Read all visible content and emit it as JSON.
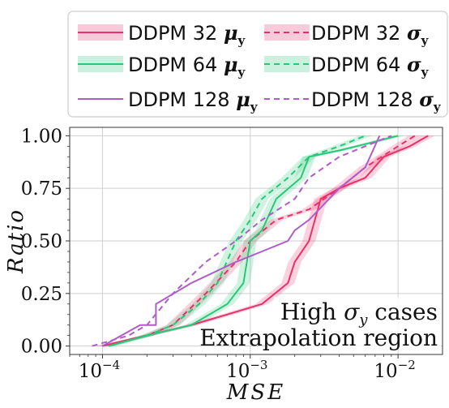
{
  "chart_data": {
    "type": "line",
    "xlabel": "MSE",
    "ylabel": "Ratio",
    "xscale": "log",
    "xlim": [
      6e-05,
      0.02
    ],
    "ylim": [
      -0.04,
      1.04
    ],
    "yticks": [
      "0.00",
      "0.25",
      "0.50",
      "0.75",
      "1.00"
    ],
    "xticks": [
      {
        "base": "10",
        "exp": "−4",
        "value": 0.0001
      },
      {
        "base": "10",
        "exp": "−3",
        "value": 0.001
      },
      {
        "base": "10",
        "exp": "−2",
        "value": 0.01
      }
    ],
    "grid": true,
    "legend_position": "top",
    "annotation": [
      "High σ_y cases",
      "Extrapolation region"
    ],
    "colors": {
      "ddpm32": "#e8306a",
      "ddpm64": "#28c878",
      "ddpm128": "#b05cc8"
    },
    "series": [
      {
        "name": "DDPM 32 μ_y",
        "model": "DDPM 32",
        "symbol": "μ",
        "sub": "y",
        "key": "ddpm32",
        "style": "solid",
        "x": [
          0.0001,
          0.0002,
          0.0004,
          0.0007,
          0.0012,
          0.0018,
          0.002,
          0.0025,
          0.003,
          0.004,
          0.006,
          0.008,
          0.012,
          0.016
        ],
        "y": [
          0.0,
          0.05,
          0.1,
          0.15,
          0.2,
          0.3,
          0.4,
          0.5,
          0.7,
          0.75,
          0.8,
          0.9,
          0.95,
          1.0
        ],
        "band": 0.025
      },
      {
        "name": "DDPM 32 σ_y",
        "model": "DDPM 32",
        "symbol": "σ",
        "sub": "y",
        "key": "ddpm32",
        "style": "dashed",
        "x": [
          0.0001,
          0.0002,
          0.0003,
          0.0005,
          0.0008,
          0.001,
          0.0015,
          0.0025,
          0.004,
          0.006,
          0.01,
          0.013
        ],
        "y": [
          0.0,
          0.05,
          0.1,
          0.25,
          0.4,
          0.5,
          0.6,
          0.65,
          0.75,
          0.85,
          0.95,
          1.0
        ],
        "band": 0.025
      },
      {
        "name": "DDPM 64 μ_y",
        "model": "DDPM 64",
        "symbol": "μ",
        "sub": "y",
        "key": "ddpm64",
        "style": "solid",
        "x": [
          0.00011,
          0.0002,
          0.0004,
          0.0007,
          0.0009,
          0.001,
          0.0012,
          0.0015,
          0.0022,
          0.0025,
          0.004,
          0.006,
          0.01
        ],
        "y": [
          0.0,
          0.05,
          0.1,
          0.2,
          0.3,
          0.5,
          0.55,
          0.7,
          0.8,
          0.9,
          0.93,
          0.96,
          1.0
        ],
        "band": 0.03
      },
      {
        "name": "DDPM 64 σ_y",
        "model": "DDPM 64",
        "symbol": "σ",
        "sub": "y",
        "key": "ddpm64",
        "style": "dashed",
        "x": [
          0.00011,
          0.0002,
          0.0003,
          0.00045,
          0.0006,
          0.0008,
          0.001,
          0.0012,
          0.0018,
          0.0025,
          0.004,
          0.006
        ],
        "y": [
          0.0,
          0.05,
          0.1,
          0.2,
          0.3,
          0.5,
          0.6,
          0.7,
          0.8,
          0.9,
          0.95,
          1.0
        ],
        "band": 0.04
      },
      {
        "name": "DDPM 128 μ_y",
        "model": "DDPM 128",
        "symbol": "μ",
        "sub": "y",
        "key": "ddpm128",
        "style": "solid",
        "x": [
          0.0001,
          0.00018,
          0.00023,
          0.00023,
          0.0004,
          0.0008,
          0.0012,
          0.0018,
          0.002,
          0.0025,
          0.004,
          0.006,
          0.0075
        ],
        "y": [
          0.0,
          0.1,
          0.1,
          0.2,
          0.3,
          0.4,
          0.45,
          0.5,
          0.55,
          0.6,
          0.75,
          0.85,
          1.0
        ]
      },
      {
        "name": "DDPM 128 σ_y",
        "model": "DDPM 128",
        "symbol": "σ",
        "sub": "y",
        "key": "ddpm128",
        "style": "dashed",
        "x": [
          8.5e-05,
          0.00015,
          0.0002,
          0.0003,
          0.0005,
          0.0008,
          0.0012,
          0.002,
          0.0025,
          0.004,
          0.006,
          0.009
        ],
        "y": [
          0.0,
          0.05,
          0.1,
          0.25,
          0.4,
          0.5,
          0.6,
          0.7,
          0.8,
          0.9,
          0.95,
          1.0
        ]
      }
    ]
  }
}
